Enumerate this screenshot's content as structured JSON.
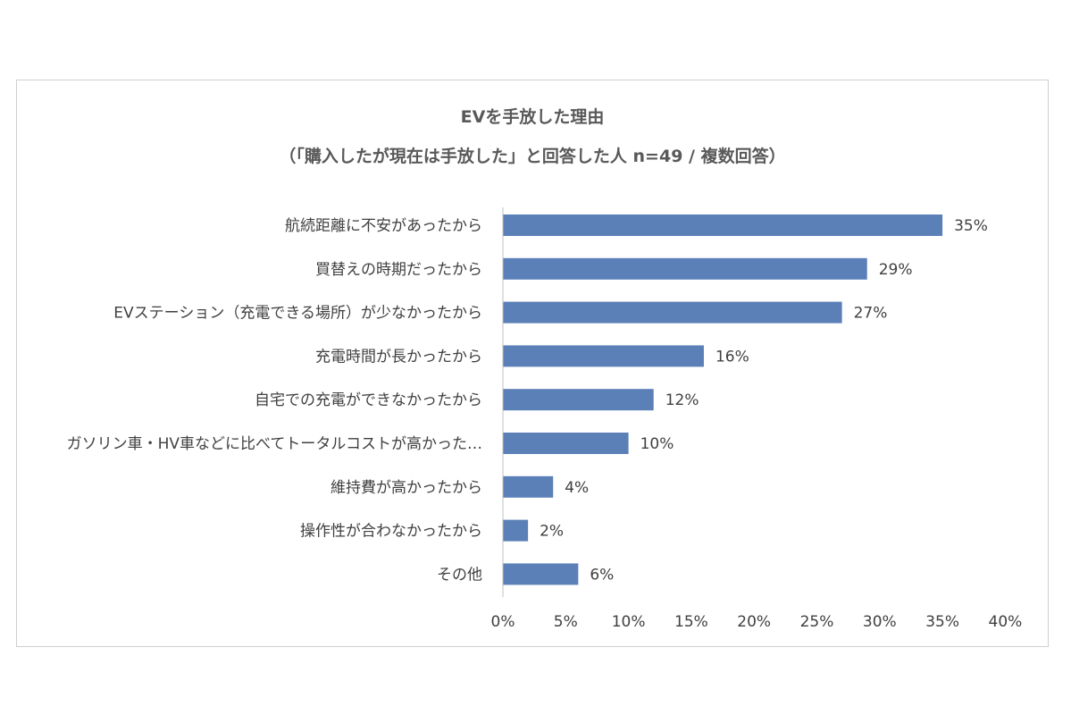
{
  "chart_data": {
    "type": "bar",
    "orientation": "horizontal",
    "title": "EVを手放した理由",
    "subtitle": "（「購入したが現在は手放した」と回答した人 n=49 / 複数回答）",
    "categories": [
      "航続距離に不安があったから",
      "買替えの時期だったから",
      "EVステーション（充電できる場所）が少なかったから",
      "充電時間が長かったから",
      "自宅での充電ができなかったから",
      "ガソリン車・HV車などに比べてトータルコストが高かった…",
      "維持費が高かったから",
      "操作性が合わなかったから",
      "その他"
    ],
    "values": [
      35,
      29,
      27,
      16,
      12,
      10,
      4,
      2,
      6
    ],
    "value_labels": [
      "35%",
      "29%",
      "27%",
      "16%",
      "12%",
      "10%",
      "4%",
      "2%",
      "6%"
    ],
    "xlim": [
      0,
      40
    ],
    "xticks": [
      "0%",
      "5%",
      "10%",
      "15%",
      "20%",
      "25%",
      "30%",
      "35%",
      "40%"
    ],
    "grid": false,
    "bar_color": "#5b80b8"
  }
}
